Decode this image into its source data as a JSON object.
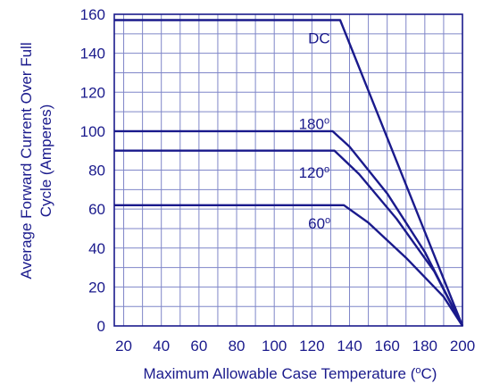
{
  "chart_data": {
    "type": "line",
    "xlabel": "Maximum Allowable Case Temperature (°C)",
    "xlabel_main": "Maximum Allowable Case Temperature (",
    "xlabel_sup": "o",
    "xlabel_end": "C)",
    "ylabel_line1": "Average Forward Current Over Full",
    "ylabel_line2": "Cycle (Amperes)",
    "xlim": [
      15,
      200
    ],
    "ylim": [
      0,
      160
    ],
    "x_ticks": [
      20,
      40,
      60,
      80,
      100,
      120,
      140,
      160,
      180,
      200
    ],
    "y_ticks": [
      0,
      20,
      40,
      60,
      80,
      100,
      120,
      140,
      160
    ],
    "grid": true,
    "series": [
      {
        "name": "DC",
        "points": [
          [
            15,
            157
          ],
          [
            135,
            157
          ],
          [
            200,
            0
          ]
        ],
        "label": {
          "text": "DC",
          "sup": "",
          "x": 118,
          "y": 145
        }
      },
      {
        "name": "180°",
        "points": [
          [
            15,
            100
          ],
          [
            131,
            100
          ],
          [
            140,
            92
          ],
          [
            160,
            68
          ],
          [
            180,
            38
          ],
          [
            200,
            0
          ]
        ],
        "label": {
          "text": "180",
          "sup": "o",
          "x": 113,
          "y": 101
        }
      },
      {
        "name": "120°",
        "points": [
          [
            15,
            90
          ],
          [
            132,
            90
          ],
          [
            145,
            78
          ],
          [
            165,
            55
          ],
          [
            185,
            28
          ],
          [
            200,
            0
          ]
        ],
        "label": {
          "text": "120",
          "sup": "o",
          "x": 113,
          "y": 76
        }
      },
      {
        "name": "60°",
        "points": [
          [
            15,
            62
          ],
          [
            137,
            62
          ],
          [
            150,
            53
          ],
          [
            170,
            35
          ],
          [
            190,
            15
          ],
          [
            200,
            0
          ]
        ],
        "label": {
          "text": "60",
          "sup": "o",
          "x": 118,
          "y": 50
        }
      }
    ],
    "colors": {
      "line": "#1a1a8c",
      "grid": "#7f86c8",
      "text": "#1a1a8c"
    }
  }
}
